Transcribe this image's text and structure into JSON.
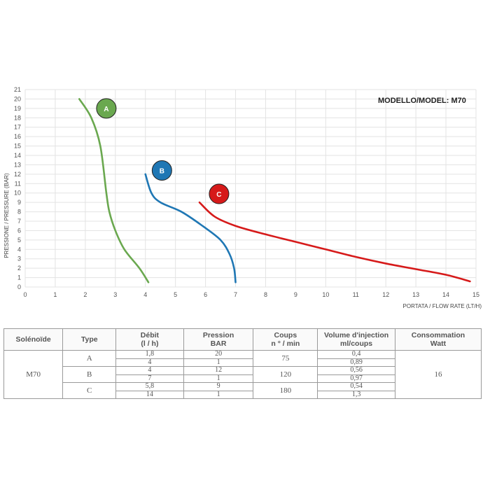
{
  "chart_data": {
    "type": "line",
    "model_label": "MODELLO/MODEL: M70",
    "xlabel": "PORTATA / FLOW RATE (LT/H)",
    "ylabel": "PRESSIONE / PRESSURE (BAR)",
    "xlim": [
      0,
      15
    ],
    "ylim": [
      0,
      21
    ],
    "x_ticks": [
      "0",
      "1",
      "2",
      "3",
      "4",
      "5",
      "6",
      "7",
      "8",
      "9",
      "10",
      "11",
      "12",
      "13",
      "14",
      "15"
    ],
    "y_ticks": [
      "0",
      "1",
      "2",
      "3",
      "4",
      "5",
      "6",
      "7",
      "8",
      "9",
      "10",
      "11",
      "12",
      "13",
      "14",
      "15",
      "16",
      "17",
      "18",
      "19",
      "20",
      "21"
    ],
    "grid": true,
    "series": [
      {
        "name": "A",
        "color": "#6aa84f",
        "points": [
          [
            1.8,
            20
          ],
          [
            2.2,
            18
          ],
          [
            2.5,
            15
          ],
          [
            2.7,
            10
          ],
          [
            2.8,
            8
          ],
          [
            3.0,
            6
          ],
          [
            3.3,
            4
          ],
          [
            3.8,
            2
          ],
          [
            4.1,
            0.5
          ]
        ],
        "badge": [
          2.7,
          19
        ]
      },
      {
        "name": "B",
        "color": "#1f77b4",
        "points": [
          [
            4.0,
            12
          ],
          [
            4.2,
            10
          ],
          [
            4.5,
            9
          ],
          [
            5.2,
            8
          ],
          [
            5.9,
            6.5
          ],
          [
            6.5,
            5
          ],
          [
            6.8,
            3.5
          ],
          [
            6.95,
            2
          ],
          [
            7.0,
            0.5
          ]
        ],
        "badge": [
          4.55,
          12.4
        ]
      },
      {
        "name": "C",
        "color": "#d61a1a",
        "points": [
          [
            5.8,
            9
          ],
          [
            6.3,
            7.5
          ],
          [
            7.0,
            6.5
          ],
          [
            8.0,
            5.6
          ],
          [
            9.0,
            4.8
          ],
          [
            10.0,
            4.0
          ],
          [
            11.0,
            3.2
          ],
          [
            12.0,
            2.5
          ],
          [
            13.0,
            1.9
          ],
          [
            14.0,
            1.3
          ],
          [
            14.8,
            0.6
          ]
        ],
        "badge": [
          6.45,
          9.9
        ]
      }
    ]
  },
  "table": {
    "headers": [
      [
        "Solénoïde"
      ],
      [
        "Type"
      ],
      [
        "Débit",
        "(l / h)"
      ],
      [
        "Pression",
        "BAR"
      ],
      [
        "Coups",
        "n ° / min"
      ],
      [
        "Volume d'injection",
        "ml/coups"
      ],
      [
        "Consommation",
        "Watt"
      ]
    ],
    "solenoid": "M70",
    "consommation": "16",
    "groups": [
      {
        "type": "A",
        "coups": "75",
        "rows": [
          {
            "debit": "1,8",
            "pression": "20",
            "volume": "0,4"
          },
          {
            "debit": "4",
            "pression": "1",
            "volume": "0,89"
          }
        ]
      },
      {
        "type": "B",
        "coups": "120",
        "rows": [
          {
            "debit": "4",
            "pression": "12",
            "volume": "0,56"
          },
          {
            "debit": "7",
            "pression": "1",
            "volume": "0,97"
          }
        ]
      },
      {
        "type": "C",
        "coups": "180",
        "rows": [
          {
            "debit": "5,8",
            "pression": "9",
            "volume": "0,54"
          },
          {
            "debit": "14",
            "pression": "1",
            "volume": "1,3"
          }
        ]
      }
    ]
  }
}
